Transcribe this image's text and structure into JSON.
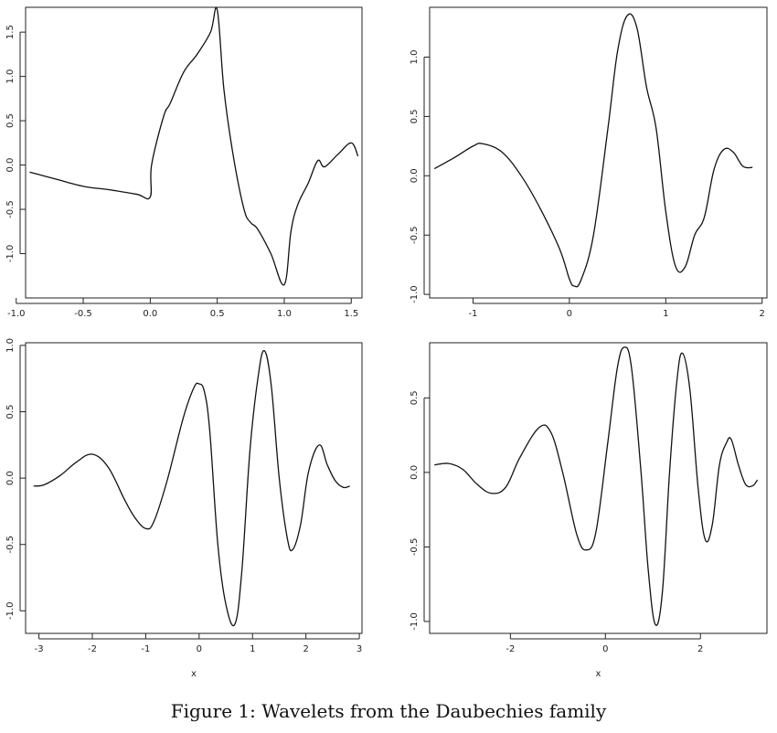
{
  "caption": "Figure 1: Wavelets from the Daubechies family",
  "chart_data": [
    {
      "type": "line",
      "title": "",
      "xlabel": "",
      "ylabel": "",
      "xlim": [
        -0.93,
        1.58
      ],
      "ylim": [
        -1.5,
        1.78
      ],
      "xticks": [
        -1.0,
        -0.5,
        0.0,
        0.5,
        1.0,
        1.5
      ],
      "xtick_labels": [
        "-1.0",
        "-0.5",
        "0.0",
        "0.5",
        "1.0",
        "1.5"
      ],
      "yticks": [
        -1.0,
        -0.5,
        0.0,
        0.5,
        1.0,
        1.5
      ],
      "ytick_labels": [
        "-1.0",
        "-0.5",
        "0.0",
        "0.5",
        "1.0",
        "1.5"
      ],
      "grid": false,
      "series": [
        {
          "x": [
            -0.9,
            -0.8,
            -0.7,
            -0.5,
            -0.3,
            -0.1,
            0.0,
            0.01,
            0.1,
            0.15,
            0.25,
            0.35,
            0.45,
            0.5,
            0.55,
            0.62,
            0.7,
            0.75,
            0.8,
            0.9,
            1.0,
            1.05,
            1.1,
            1.18,
            1.25,
            1.3,
            1.4,
            1.5,
            1.55
          ],
          "y": [
            -0.08,
            -0.12,
            -0.16,
            -0.24,
            -0.28,
            -0.33,
            -0.36,
            0.0,
            0.55,
            0.7,
            1.05,
            1.25,
            1.5,
            1.75,
            0.85,
            0.1,
            -0.5,
            -0.65,
            -0.72,
            -1.0,
            -1.35,
            -0.75,
            -0.45,
            -0.2,
            0.05,
            -0.02,
            0.12,
            0.25,
            0.1
          ]
        }
      ]
    },
    {
      "type": "line",
      "title": "",
      "xlabel": "",
      "ylabel": "",
      "xlim": [
        -1.45,
        2.05
      ],
      "ylim": [
        -1.03,
        1.42
      ],
      "xticks": [
        -1,
        0,
        1,
        2
      ],
      "xtick_labels": [
        "-1",
        "0",
        "1",
        "2"
      ],
      "yticks": [
        -1.0,
        -0.5,
        0.0,
        0.5,
        1.0
      ],
      "ytick_labels": [
        "-1.0",
        "-0.5",
        "0.0",
        "0.5",
        "1.0"
      ],
      "grid": false,
      "series": [
        {
          "x": [
            -1.4,
            -1.2,
            -1.0,
            -0.9,
            -0.7,
            -0.5,
            -0.3,
            -0.1,
            0.0,
            0.05,
            0.12,
            0.25,
            0.4,
            0.5,
            0.6,
            0.7,
            0.8,
            0.9,
            1.0,
            1.1,
            1.2,
            1.3,
            1.4,
            1.5,
            1.6,
            1.7,
            1.8,
            1.9
          ],
          "y": [
            0.06,
            0.15,
            0.25,
            0.27,
            0.2,
            0.0,
            -0.28,
            -0.62,
            -0.87,
            -0.93,
            -0.88,
            -0.5,
            0.4,
            1.05,
            1.35,
            1.25,
            0.75,
            0.4,
            -0.3,
            -0.76,
            -0.77,
            -0.5,
            -0.35,
            0.05,
            0.22,
            0.2,
            0.08,
            0.07
          ]
        }
      ]
    },
    {
      "type": "line",
      "title": "",
      "xlabel": "x",
      "ylabel": "",
      "xlim": [
        -3.25,
        3.05
      ],
      "ylim": [
        -1.17,
        1.02
      ],
      "xticks": [
        -3,
        -2,
        -1,
        0,
        1,
        2,
        3
      ],
      "xtick_labels": [
        "-3",
        "-2",
        "-1",
        "0",
        "1",
        "2",
        "3"
      ],
      "yticks": [
        -1.0,
        -0.5,
        0.0,
        0.5,
        1.0
      ],
      "ytick_labels": [
        "-1.0",
        "-0.5",
        "0.0",
        "0.5",
        "1.0"
      ],
      "grid": false,
      "series": [
        {
          "x": [
            -3.1,
            -2.9,
            -2.6,
            -2.3,
            -2.0,
            -1.7,
            -1.4,
            -1.2,
            -1.0,
            -0.85,
            -0.6,
            -0.3,
            -0.1,
            0.0,
            0.1,
            0.2,
            0.35,
            0.5,
            0.67,
            0.8,
            0.95,
            1.1,
            1.22,
            1.35,
            1.5,
            1.65,
            1.75,
            1.9,
            2.05,
            2.25,
            2.4,
            2.55,
            2.7,
            2.82
          ],
          "y": [
            -0.06,
            -0.05,
            0.02,
            0.12,
            0.18,
            0.08,
            -0.16,
            -0.3,
            -0.38,
            -0.33,
            -0.02,
            0.45,
            0.68,
            0.71,
            0.65,
            0.35,
            -0.5,
            -0.95,
            -1.1,
            -0.7,
            0.2,
            0.75,
            0.96,
            0.7,
            0.0,
            -0.45,
            -0.54,
            -0.35,
            0.05,
            0.25,
            0.1,
            -0.02,
            -0.07,
            -0.06
          ]
        }
      ]
    },
    {
      "type": "line",
      "title": "",
      "xlabel": "x",
      "ylabel": "",
      "xlim": [
        -3.7,
        3.4
      ],
      "ylim": [
        -1.08,
        0.87
      ],
      "xticks": [
        -2,
        0,
        2
      ],
      "xtick_labels": [
        "-2",
        "0",
        "2"
      ],
      "yticks": [
        -1.0,
        -0.5,
        0.0,
        0.5
      ],
      "ytick_labels": [
        "-1.0",
        "-0.5",
        "0.0",
        "0.5"
      ],
      "grid": false,
      "series": [
        {
          "x": [
            -3.6,
            -3.3,
            -3.0,
            -2.7,
            -2.4,
            -2.1,
            -1.8,
            -1.4,
            -1.15,
            -0.9,
            -0.6,
            -0.4,
            -0.2,
            0.05,
            0.25,
            0.4,
            0.55,
            0.75,
            0.9,
            1.05,
            1.2,
            1.35,
            1.5,
            1.62,
            1.78,
            1.95,
            2.1,
            2.25,
            2.4,
            2.55,
            2.65,
            2.8,
            2.95,
            3.1,
            3.2
          ],
          "y": [
            0.05,
            0.06,
            0.02,
            -0.08,
            -0.14,
            -0.1,
            0.1,
            0.3,
            0.27,
            0.0,
            -0.42,
            -0.52,
            -0.4,
            0.2,
            0.7,
            0.84,
            0.7,
            0.0,
            -0.65,
            -1.02,
            -0.8,
            0.0,
            0.6,
            0.8,
            0.55,
            -0.1,
            -0.45,
            -0.35,
            0.05,
            0.2,
            0.22,
            0.05,
            -0.08,
            -0.09,
            -0.05
          ]
        }
      ]
    }
  ]
}
